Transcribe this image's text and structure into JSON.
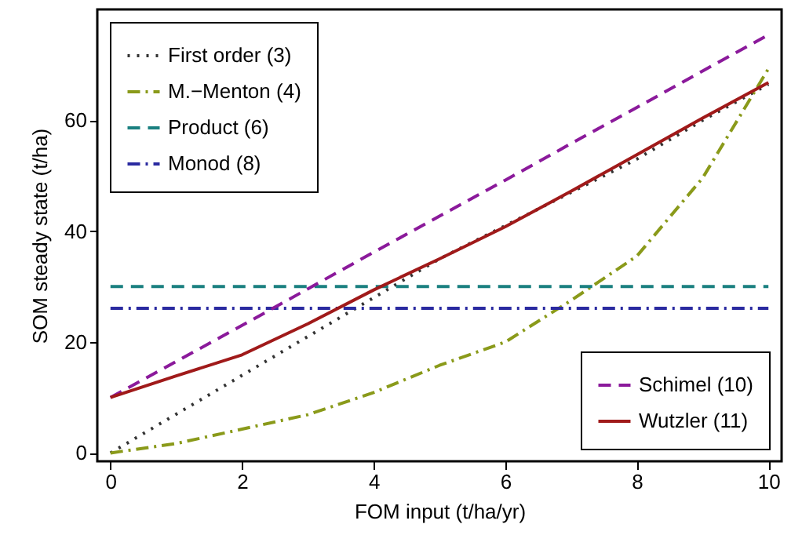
{
  "chart_data": {
    "type": "line",
    "xlabel": "FOM input (t/ha/yr)",
    "ylabel": "SOM steady state (t/ha)",
    "x": [
      0,
      1,
      2,
      3,
      4,
      5,
      6,
      7,
      8,
      9,
      10
    ],
    "series": [
      {
        "name": "First order (3)",
        "color": "#333333",
        "line_style": "dotted",
        "values": [
          0,
          7,
          14,
          21,
          28,
          35,
          41,
          47,
          53,
          60,
          66.5
        ]
      },
      {
        "name": "M.−Menton (4)",
        "color": "#8a9a1a",
        "line_style": "dashdot",
        "values": [
          0,
          1.7,
          4.3,
          6.9,
          10.9,
          15.8,
          20,
          27.5,
          35.5,
          49.6,
          69.3
        ]
      },
      {
        "name": "Product (6)",
        "color": "#1a8080",
        "line_style": "dashed",
        "values": [
          30,
          30,
          30,
          30,
          30,
          30,
          30,
          30,
          30,
          30,
          30
        ]
      },
      {
        "name": "Monod (8)",
        "color": "#2a2aa0",
        "line_style": "dashdot",
        "values": [
          26.1,
          26.1,
          26.1,
          26.1,
          26.1,
          26.1,
          26.1,
          26.1,
          26.1,
          26.1,
          26.1
        ]
      },
      {
        "name": "Schimel (10)",
        "color": "#8b1a9b",
        "line_style": "dashed",
        "values": [
          10,
          16.5,
          23,
          29.6,
          36.2,
          42.7,
          49.2,
          55.8,
          62.3,
          68.9,
          75.4
        ]
      },
      {
        "name": "Wutzler (11)",
        "color": "#a01a1a",
        "line_style": "solid",
        "values": [
          10,
          13.9,
          17.7,
          23.3,
          29.4,
          35,
          40.8,
          47.2,
          53.8,
          60.4,
          66.8
        ]
      }
    ],
    "legend": [
      "top left",
      "top left",
      "top left",
      "top left",
      "bottom right",
      "bottom right"
    ],
    "xlim": [
      -0.2,
      10.2
    ],
    "ylim": [
      -1.5,
      80
    ],
    "xticks": [
      0,
      2,
      4,
      6,
      8,
      10
    ],
    "yticks": [
      0,
      20,
      40,
      60
    ],
    "grid": false,
    "marker": "none"
  }
}
